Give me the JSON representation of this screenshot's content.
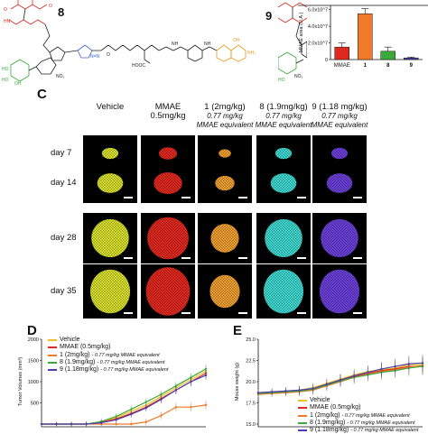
{
  "panels": {
    "chem_labels": {
      "compound_8": "8",
      "compound_9": "9"
    },
    "bar_chart": {
      "ylabel": "MMAE area (U.A.)"
    },
    "letters": {
      "c": "C",
      "d": "D",
      "e": "E"
    }
  },
  "imaging": {
    "columns": [
      {
        "title": "Vehicle",
        "sub": "",
        "color": "#d9e02c"
      },
      {
        "title": "MMAE",
        "title2": "0.5mg/kg",
        "sub": "",
        "color": "#e0281e"
      },
      {
        "title": "1 (2mg/kg)",
        "sub": "0.77 mg/kg",
        "sub2": "MMAE equivalent",
        "color": "#f0a030"
      },
      {
        "title": "8 (1.9mg/kg)",
        "sub": "0.77 mg/kg",
        "sub2": "MMAE equivalent",
        "color": "#3fd8d0"
      },
      {
        "title": "9 (1.18 mg/kg)",
        "sub": "0.77 mg/kg",
        "sub2": "MMAE equivalent",
        "color": "#6a3fd8"
      }
    ],
    "rows": [
      "day 7",
      "day 14",
      "day 28",
      "day 35"
    ]
  },
  "chart_data": [
    {
      "type": "bar",
      "categories": [
        "MMAE",
        "1",
        "8",
        "9"
      ],
      "values": [
        15000000.0,
        55000000.0,
        10000000.0,
        2000000.0
      ],
      "errors": [
        5000000.0,
        6000000.0,
        5000000.0,
        1000000.0
      ],
      "colors": [
        "#e0281e",
        "#f07a2a",
        "#3aa83a",
        "#4a3fae"
      ],
      "ylabel": "MMAE area (U.A.)",
      "ytick_labels": [
        "6.0x10^7",
        "4.0x10^7",
        "2.0x10^7",
        "0"
      ],
      "ylim": [
        0,
        65000000.0
      ]
    },
    {
      "type": "line",
      "ylabel": "Tumor Volumes (mm³)",
      "ytick_labels": [
        "2000",
        "1500",
        "1000",
        "500"
      ],
      "ylim": [
        0,
        2000
      ],
      "x": [
        0,
        1,
        2,
        3,
        4,
        5,
        6,
        7,
        8,
        9,
        10,
        11
      ],
      "series": [
        {
          "name": "Vehicle",
          "color": "#f0c020",
          "values": [
            0,
            0,
            0,
            0,
            50,
            150,
            300,
            450,
            650,
            850,
            1050,
            1250
          ]
        },
        {
          "name": "MMAE (0.5mg/kg)",
          "color": "#e0281e",
          "values": [
            0,
            0,
            0,
            0,
            40,
            120,
            250,
            400,
            600,
            800,
            1000,
            1200
          ]
        },
        {
          "name": "1 (2mg/kg)",
          "note": "- 0.77 mg/kg MMAE equivalent",
          "color": "#f07a2a",
          "values": [
            0,
            0,
            0,
            0,
            0,
            0,
            0,
            50,
            200,
            400,
            400,
            450
          ]
        },
        {
          "name": "8 (1.9mg/kg)",
          "note": "- 0.77 mg/kg MMAE equivalent",
          "color": "#3aa83a",
          "values": [
            0,
            0,
            0,
            0,
            60,
            180,
            350,
            520,
            700,
            900,
            1100,
            1300
          ]
        },
        {
          "name": "9 (1.18mg/kg)",
          "note": "- 0.77 mg/kg MMAE equivalent",
          "color": "#4a3fae",
          "values": [
            0,
            0,
            0,
            0,
            30,
            100,
            230,
            380,
            580,
            800,
            1000,
            1150
          ]
        }
      ]
    },
    {
      "type": "line",
      "ylabel": "Mouse weight (g)",
      "ytick_labels": [
        "25.0",
        "22.5",
        "20.0",
        "17.5",
        "15.0"
      ],
      "ylim": [
        15,
        25
      ],
      "x": [
        0,
        1,
        2,
        3,
        4,
        5,
        6,
        7,
        8,
        9,
        10,
        11,
        12
      ],
      "series": [
        {
          "name": "Vehicle",
          "color": "#f0c020",
          "values": [
            18.7,
            18.8,
            18.9,
            19.0,
            19.3,
            19.8,
            20.3,
            20.8,
            21.2,
            21.4,
            21.6,
            22.0,
            22.0
          ]
        },
        {
          "name": "MMAE (0.5mg/kg)",
          "color": "#e0281e",
          "values": [
            18.6,
            18.7,
            18.8,
            18.9,
            19.1,
            19.6,
            20.2,
            20.6,
            21.0,
            21.3,
            21.5,
            21.8,
            21.8
          ]
        },
        {
          "name": "1 (2mg/kg)",
          "note": "- 0.77 mg/kg MMAE equivalent",
          "color": "#f07a2a",
          "values": [
            18.5,
            18.6,
            18.7,
            18.8,
            19.0,
            19.5,
            20.0,
            20.5,
            20.9,
            21.2,
            21.4,
            21.7,
            21.9
          ]
        },
        {
          "name": "8 (1.9mg/kg)",
          "note": "- 0.77 mg/kg MMAE equivalent",
          "color": "#3aa83a",
          "values": [
            18.6,
            18.7,
            18.8,
            18.9,
            19.1,
            19.6,
            20.1,
            20.5,
            20.8,
            21.1,
            21.3,
            21.6,
            21.8
          ]
        },
        {
          "name": "9 (1.18mg/kg)",
          "note": "- 0.77 mg/kg MMAE equivalent",
          "color": "#4a3fae",
          "values": [
            18.7,
            18.8,
            18.9,
            19.0,
            19.2,
            19.7,
            20.2,
            20.7,
            21.1,
            21.5,
            21.8,
            22.1,
            22.2
          ]
        }
      ]
    }
  ]
}
